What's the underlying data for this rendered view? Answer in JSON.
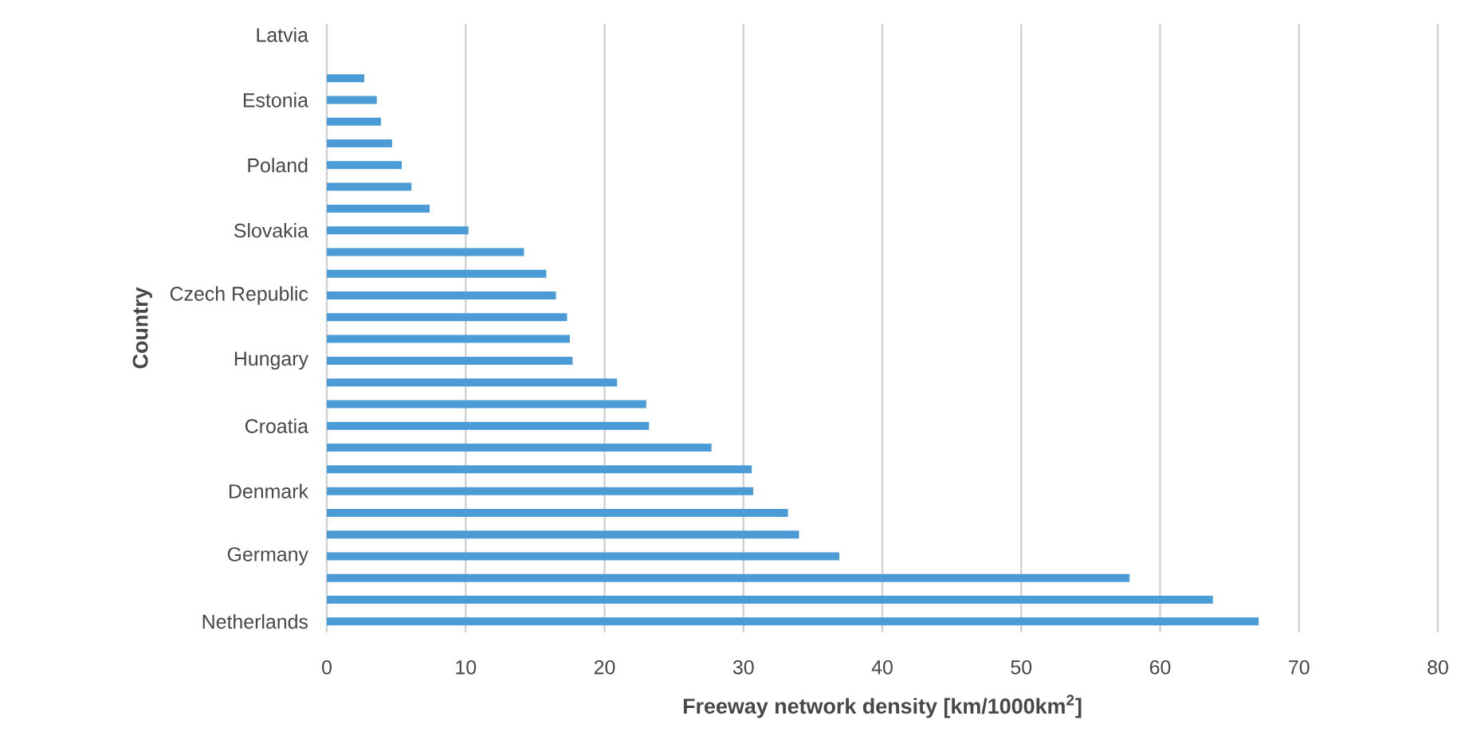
{
  "chart_data": {
    "type": "bar",
    "orientation": "horizontal",
    "xlabel": "Freeway network density [km/1000km$^{2}$]",
    "ylabel": "Country",
    "categories": [
      "Latvia",
      null,
      null,
      "Estonia",
      null,
      null,
      "Poland",
      null,
      null,
      "Slovakia",
      null,
      null,
      "Czech Republic",
      null,
      null,
      "Hungary",
      null,
      null,
      "Croatia",
      null,
      null,
      "Denmark",
      null,
      null,
      "Germany",
      null,
      null,
      "Netherlands"
    ],
    "values": [
      null,
      null,
      2.7,
      3.6,
      3.9,
      4.7,
      5.4,
      6.1,
      7.4,
      10.2,
      14.2,
      15.8,
      16.5,
      17.3,
      17.5,
      17.7,
      20.9,
      23.0,
      23.2,
      27.7,
      30.6,
      30.7,
      33.2,
      34.0,
      36.9,
      57.8,
      63.8,
      67.1
    ],
    "color": "#4a9bd6",
    "xlim": [
      0,
      80
    ],
    "xticks": [
      0,
      10,
      20,
      30,
      40,
      50,
      60,
      70,
      80
    ],
    "grid": "x"
  }
}
